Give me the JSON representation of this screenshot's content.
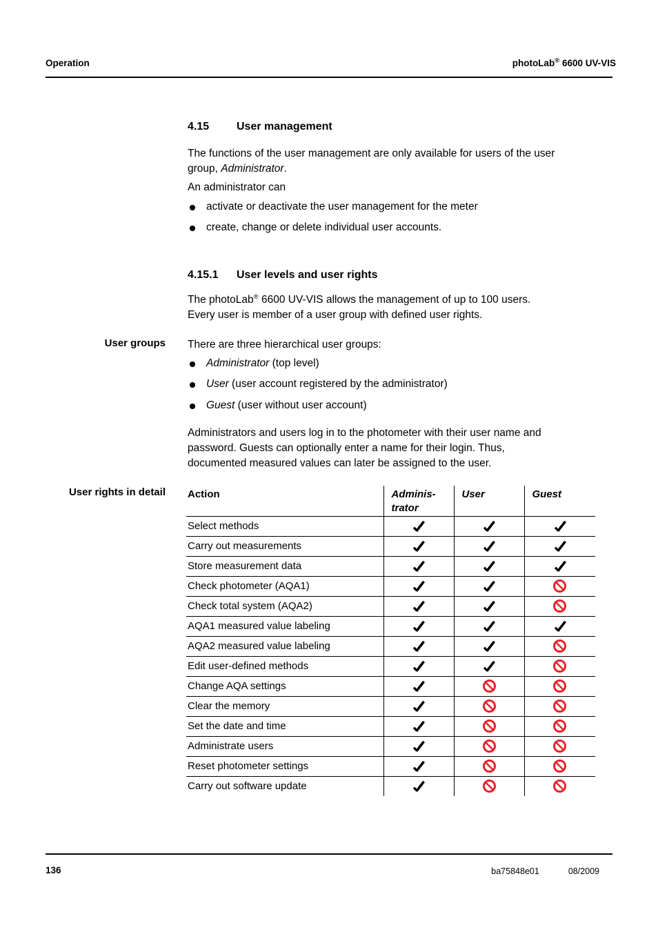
{
  "colors": {
    "text": "#000000",
    "denied_red": "#e5232a"
  },
  "icons": {
    "allowed": "check-icon",
    "denied": "prohibited-icon",
    "bullet": "bullet-icon"
  },
  "page_header": {
    "left": "Operation",
    "brand": "photoLab",
    "brand_reg": "®",
    "brand_rest": " 6600 UV-VIS"
  },
  "section": {
    "number": "4.15",
    "title": "User management"
  },
  "intro": {
    "p1_pre": "The functions of the user management are only available for users of the user\ngroup, ",
    "p1_italic": "Administrator",
    "p1_post": ".",
    "p2": "An administrator can",
    "bullets": [
      "activate or deactivate the user management for the meter",
      "create, change or delete individual user accounts."
    ]
  },
  "subsection": {
    "number": "4.15.1",
    "title": "User levels and user rights"
  },
  "sub_intro": {
    "pre": "The photoLab",
    "reg": "®",
    "post": " 6600 UV-VIS allows the management of up to 100 users.\nEvery user is member of a user group with defined user rights."
  },
  "user_groups": {
    "side_label": "User groups",
    "intro": "There are three hierarchical user groups:",
    "bullets": [
      {
        "term": "Administrator",
        "rest": " (top level)"
      },
      {
        "term": "User",
        "rest": " (user account registered by the administrator)"
      },
      {
        "term": "Guest",
        "rest": " (user without user account)"
      }
    ],
    "outro": "Administrators and users log in to the photometer with their user name and\npassword. Guests can optionally enter a name for their login. Thus,\ndocumented measured values can later be assigned to the user."
  },
  "rights_table": {
    "side_label": "User rights in detail",
    "columns": [
      "Action",
      "Adminis-\ntrator",
      "User",
      "Guest"
    ],
    "rows": [
      {
        "action": "Select methods",
        "administrator": "yes",
        "user": "yes",
        "guest": "yes"
      },
      {
        "action": "Carry out measurements",
        "administrator": "yes",
        "user": "yes",
        "guest": "yes"
      },
      {
        "action": "Store measurement data",
        "administrator": "yes",
        "user": "yes",
        "guest": "yes"
      },
      {
        "action": "Check photometer (AQA1)",
        "administrator": "yes",
        "user": "yes",
        "guest": "no"
      },
      {
        "action": "Check total system (AQA2)",
        "administrator": "yes",
        "user": "yes",
        "guest": "no"
      },
      {
        "action": "AQA1 measured value labeling",
        "administrator": "yes",
        "user": "yes",
        "guest": "yes"
      },
      {
        "action": "AQA2 measured value labeling",
        "administrator": "yes",
        "user": "yes",
        "guest": "no"
      },
      {
        "action": "Edit user-defined methods",
        "administrator": "yes",
        "user": "yes",
        "guest": "no"
      },
      {
        "action": "Change AQA settings",
        "administrator": "yes",
        "user": "no",
        "guest": "no"
      },
      {
        "action": "Clear the memory",
        "administrator": "yes",
        "user": "no",
        "guest": "no"
      },
      {
        "action": "Set the date and time",
        "administrator": "yes",
        "user": "no",
        "guest": "no"
      },
      {
        "action": "Administrate users",
        "administrator": "yes",
        "user": "no",
        "guest": "no"
      },
      {
        "action": "Reset photometer settings",
        "administrator": "yes",
        "user": "no",
        "guest": "no"
      },
      {
        "action": "Carry out software update",
        "administrator": "yes",
        "user": "no",
        "guest": "no"
      }
    ]
  },
  "page_footer": {
    "page_number": "136",
    "doc_id": "ba75848e01",
    "date": "08/2009"
  }
}
